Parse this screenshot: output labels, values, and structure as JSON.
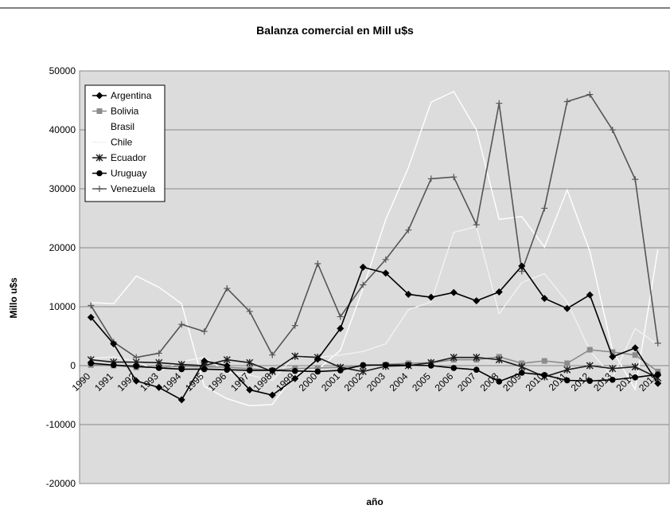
{
  "chart_data": {
    "type": "line",
    "title": "Balanza comercial en Mill u$s",
    "xlabel": "año",
    "ylabel": "Millo u$s",
    "ylim": [
      -20000,
      50000
    ],
    "yticks": [
      -20000,
      -10000,
      0,
      10000,
      20000,
      30000,
      40000,
      50000
    ],
    "grid": true,
    "legend_position": "top-left",
    "categories": [
      "1990",
      "1991",
      "1992",
      "1993",
      "1994",
      "1995",
      "1996",
      "1997",
      "1998",
      "1999",
      "2000",
      "2001",
      "2002",
      "2003",
      "2004",
      "2005",
      "2006",
      "2007",
      "2008",
      "2009",
      "2010",
      "2011",
      "2012",
      "2013",
      "2014",
      "2015"
    ],
    "series": [
      {
        "name": "Argentina",
        "color": "#000000",
        "marker": "diamond",
        "values": [
          8200,
          3700,
          -2600,
          -3700,
          -5800,
          800,
          0,
          -4100,
          -5000,
          -2200,
          1100,
          6300,
          16700,
          15700,
          12100,
          11600,
          12400,
          11000,
          12500,
          16900,
          11400,
          9700,
          12000,
          1500,
          3000,
          -3000
        ]
      },
      {
        "name": "Bolivia",
        "color": "#8c8c8c",
        "marker": "square",
        "values": [
          100,
          0,
          -300,
          -300,
          -100,
          -200,
          -300,
          -500,
          -800,
          -500,
          -400,
          -300,
          -100,
          200,
          400,
          500,
          1000,
          1000,
          1500,
          400,
          800,
          400,
          2700,
          2300,
          1800,
          -1000
        ]
      },
      {
        "name": "Brasil",
        "color": "#ffffff",
        "marker": "none",
        "values": [
          10700,
          10500,
          15200,
          13300,
          10500,
          -3500,
          -5600,
          -6800,
          -6600,
          -1300,
          -700,
          2600,
          13100,
          24800,
          33600,
          44700,
          46500,
          40000,
          24800,
          25300,
          20100,
          29800,
          19400,
          2600,
          -4000,
          19700
        ]
      },
      {
        "name": "Chile",
        "color": "#f2f2f2",
        "marker": "none",
        "values": [
          1200,
          1500,
          700,
          -1000,
          700,
          1400,
          -1100,
          -1600,
          -2500,
          1700,
          1400,
          1800,
          2400,
          3700,
          9500,
          10800,
          22600,
          23600,
          8800,
          14100,
          15600,
          10800,
          2600,
          -2000,
          6300,
          3500
        ]
      },
      {
        "name": "Ecuador",
        "color": "#1a1a1a",
        "marker": "star",
        "values": [
          1000,
          600,
          600,
          500,
          200,
          0,
          1000,
          500,
          -1000,
          1600,
          1400,
          -300,
          -1000,
          -100,
          0,
          500,
          1400,
          1400,
          1000,
          -200,
          -1900,
          -700,
          0,
          -500,
          -200,
          -2100
        ]
      },
      {
        "name": "Uruguay",
        "color": "#000000",
        "marker": "circle",
        "values": [
          400,
          100,
          -100,
          -400,
          -600,
          -600,
          -700,
          -800,
          -800,
          -900,
          -1000,
          -800,
          100,
          100,
          100,
          0,
          -400,
          -700,
          -2700,
          -1200,
          -1600,
          -2500,
          -2600,
          -2400,
          -2000,
          -1500
        ]
      },
      {
        "name": "Venezuela",
        "color": "#555555",
        "marker": "plus",
        "values": [
          10200,
          4000,
          1400,
          2100,
          7000,
          5800,
          13100,
          9200,
          1800,
          6800,
          17300,
          8300,
          13700,
          18000,
          23000,
          31700,
          32000,
          23900,
          44500,
          16000,
          26700,
          44800,
          46000,
          40000,
          31600,
          3800
        ]
      }
    ]
  }
}
